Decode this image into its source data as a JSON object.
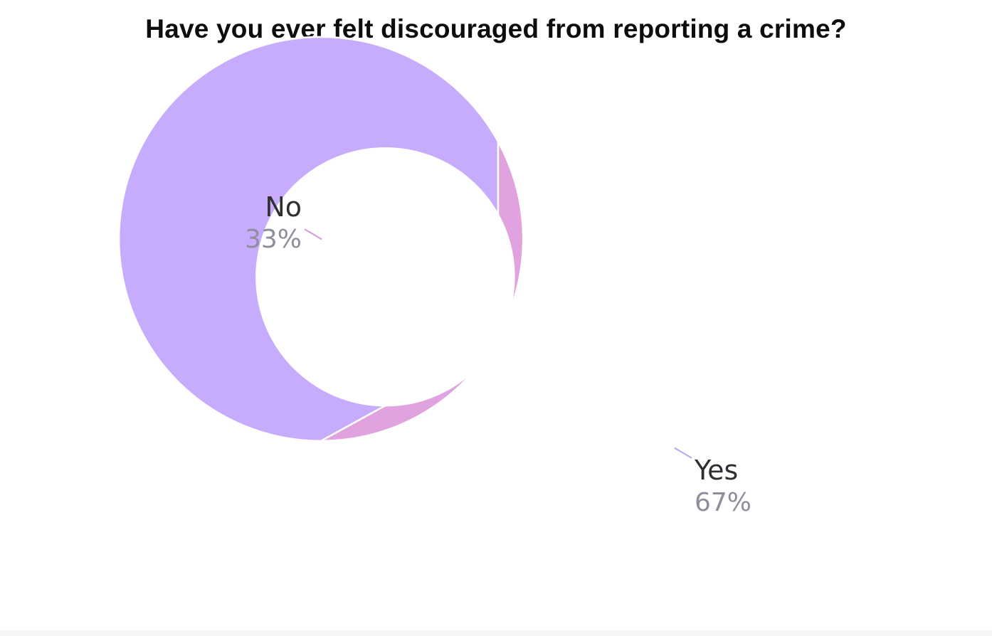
{
  "chart_data": {
    "type": "pie",
    "title": "Have you ever felt discouraged from reporting a crime?",
    "donut": true,
    "slices": [
      {
        "label": "Yes",
        "value": 67,
        "display": "67%",
        "color": "#c7abfc",
        "leader_color": "#b9a3f2"
      },
      {
        "label": "No",
        "value": 33,
        "display": "33%",
        "color": "#e1a2e0",
        "leader_color": "#d79ad8"
      }
    ],
    "start_angle_deg": 90,
    "direction": "counterclockwise",
    "legend": "none",
    "grid": false
  },
  "colors": {
    "title": "#0d0d0d",
    "label_name": "#2e2e33",
    "label_pct": "#8e8e9c",
    "slice_separator": "#ffffff"
  }
}
